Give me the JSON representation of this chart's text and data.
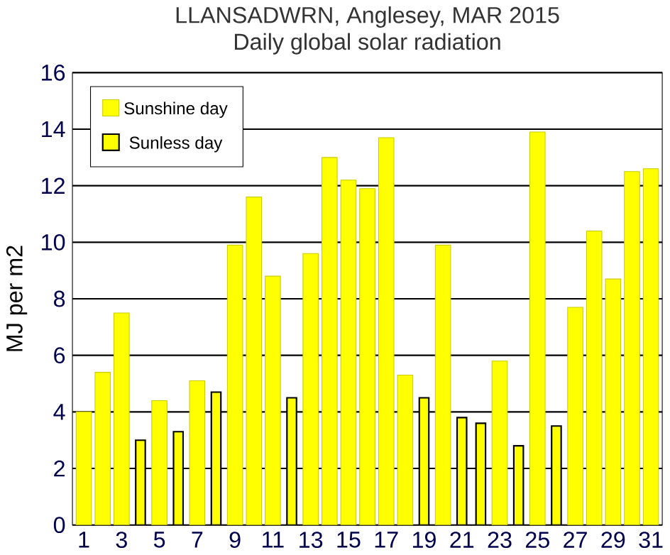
{
  "chart_data": {
    "type": "bar",
    "title": "LLANSADWRN, Anglesey, MAR 2015",
    "subtitle": "Daily global solar radiation",
    "ylabel": "MJ per m2",
    "categories": [
      "1",
      null,
      "3",
      null,
      "5",
      null,
      "7",
      null,
      "9",
      null,
      "11",
      null,
      "13",
      null,
      "15",
      null,
      "17",
      null,
      "19",
      null,
      "21",
      null,
      "23",
      null,
      "25",
      null,
      "27",
      null,
      "29",
      null,
      "31"
    ],
    "series": [
      {
        "name": "Sunshine day",
        "color": "#ffff00",
        "values": [
          4.0,
          5.4,
          7.5,
          null,
          4.4,
          null,
          5.1,
          null,
          9.9,
          11.6,
          8.8,
          null,
          9.6,
          13.0,
          12.2,
          11.9,
          13.7,
          5.3,
          null,
          9.9,
          null,
          null,
          5.8,
          null,
          13.9,
          null,
          7.7,
          10.4,
          8.7,
          12.5,
          12.6
        ]
      },
      {
        "name": "Sunless day",
        "color": "#ffff00",
        "values": [
          null,
          null,
          null,
          3.0,
          null,
          3.3,
          null,
          4.7,
          null,
          null,
          null,
          4.5,
          null,
          null,
          null,
          null,
          null,
          null,
          4.5,
          null,
          3.8,
          3.6,
          null,
          2.8,
          null,
          3.5,
          null,
          null,
          null,
          null,
          null
        ]
      }
    ],
    "ylim": [
      0,
      16
    ],
    "yticks": [
      0,
      2,
      4,
      6,
      8,
      10,
      12,
      14,
      16
    ],
    "grid": "y",
    "legend": "top left"
  }
}
